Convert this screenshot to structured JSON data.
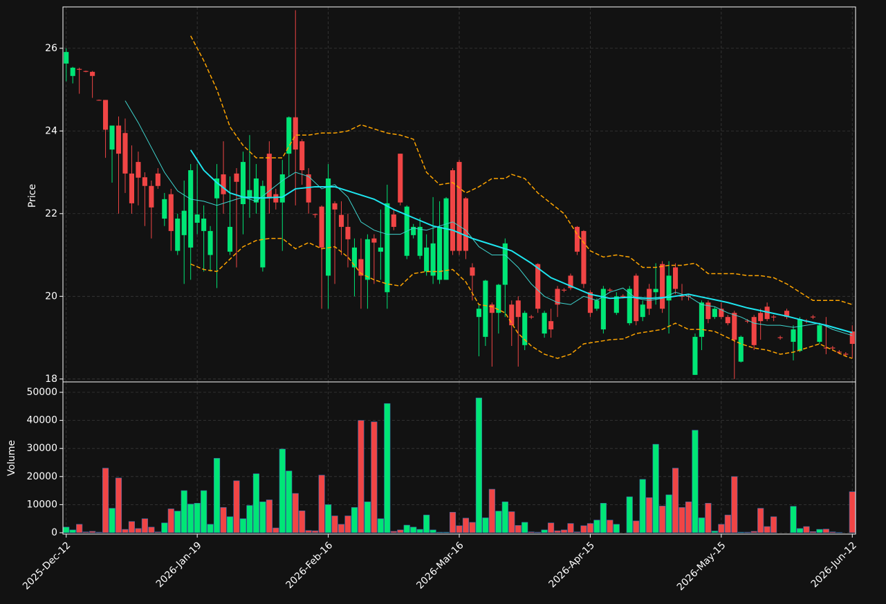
{
  "chart_data": [
    {
      "type": "candlestick",
      "ylabel": "Price",
      "grid": true,
      "up_color": "#00e676",
      "down_color": "#f04545",
      "xlim": [
        -0.5,
        120.5
      ],
      "ylim": [
        17.93,
        27.0
      ],
      "yticks": [
        18,
        20,
        22,
        24,
        26
      ],
      "open": [
        25.63,
        25.33,
        25.5,
        25.45,
        25.43,
        24.75,
        24.75,
        23.55,
        24.13,
        23.95,
        22.97,
        23.25,
        22.88,
        22.67,
        22.97,
        21.88,
        22.47,
        21.1,
        21.48,
        21.18,
        21.78,
        21.58,
        21.0,
        22.37,
        22.95,
        21.08,
        22.97,
        22.23,
        22.37,
        22.27,
        20.7,
        23.45,
        22.47,
        22.27,
        23.45,
        24.33,
        23.75,
        22.95,
        21.99,
        22.17,
        20.5,
        22.25,
        21.97,
        21.68,
        20.7,
        20.9,
        20.4,
        21.4,
        21.08,
        20.1,
        21.98,
        23.45,
        20.98,
        21.48,
        20.98,
        20.6,
        20.5,
        20.4,
        20.4,
        23.05,
        23.25,
        22.37,
        20.7,
        19.5,
        19.02,
        19.8,
        19.6,
        20.28,
        19.8,
        19.9,
        18.82,
        19.51,
        20.78,
        19.1,
        19.4,
        20.18,
        20.16,
        20.5,
        21.68,
        21.58,
        20.1,
        19.7,
        19.2,
        20.16,
        19.6,
        20.01,
        19.35,
        20.5,
        19.5,
        20.18,
        20.1,
        20.78,
        19.9,
        20.7,
        20.01,
        20.01,
        18.1,
        19.02,
        19.85,
        19.5,
        19.7,
        19.5,
        19.6,
        18.42,
        19.41,
        19.5,
        19.6,
        19.75,
        19.51,
        19.01,
        19.65,
        18.9,
        18.68,
        19.41,
        19.51,
        18.9,
        18.76,
        18.76,
        18.66,
        18.61,
        19.15
      ],
      "high": [
        26.0,
        25.55,
        25.53,
        25.46,
        25.45,
        24.76,
        24.75,
        24.13,
        24.35,
        24.3,
        23.65,
        23.5,
        23.0,
        22.8,
        23.1,
        22.5,
        22.6,
        22.0,
        22.8,
        23.2,
        23.2,
        22.2,
        21.7,
        23.2,
        23.75,
        22.9,
        23.1,
        23.5,
        23.9,
        23.2,
        22.8,
        23.75,
        22.6,
        23.3,
        24.35,
        26.92,
        23.8,
        23.1,
        22.0,
        22.2,
        23.2,
        22.3,
        22.3,
        22.0,
        21.4,
        21.4,
        21.5,
        21.5,
        22.1,
        22.7,
        22.1,
        23.45,
        22.2,
        21.75,
        21.9,
        21.5,
        22.4,
        22.3,
        22.4,
        23.1,
        23.3,
        22.4,
        20.8,
        19.8,
        20.4,
        19.85,
        20.3,
        21.4,
        19.9,
        20.0,
        19.65,
        19.55,
        20.8,
        19.65,
        19.7,
        20.25,
        20.2,
        20.55,
        21.7,
        21.6,
        20.15,
        19.95,
        20.25,
        20.2,
        20.1,
        20.05,
        20.25,
        20.55,
        19.9,
        20.3,
        20.8,
        20.85,
        20.85,
        20.8,
        20.3,
        20.05,
        19.1,
        19.9,
        19.9,
        19.75,
        19.85,
        19.55,
        19.65,
        19.05,
        19.45,
        19.55,
        19.7,
        19.85,
        19.55,
        19.05,
        19.7,
        19.3,
        19.5,
        19.45,
        19.55,
        19.35,
        19.5,
        18.8,
        18.7,
        18.65,
        19.3
      ],
      "low": [
        25.2,
        25.15,
        24.9,
        25.42,
        24.8,
        24.73,
        23.35,
        22.75,
        22.0,
        22.5,
        22.0,
        22.2,
        21.7,
        21.4,
        22.6,
        21.7,
        21.1,
        21.0,
        20.3,
        20.4,
        21.5,
        20.6,
        20.6,
        20.2,
        22.0,
        21.0,
        20.7,
        21.5,
        21.9,
        22.0,
        20.6,
        22.0,
        22.1,
        21.1,
        22.9,
        22.2,
        22.7,
        22.0,
        21.9,
        19.7,
        19.7,
        20.3,
        21.0,
        20.7,
        20.0,
        19.7,
        19.7,
        20.3,
        20.4,
        19.7,
        21.6,
        22.2,
        20.9,
        21.4,
        20.9,
        20.5,
        20.3,
        20.3,
        20.4,
        21.0,
        21.0,
        20.9,
        19.9,
        18.55,
        18.8,
        18.3,
        19.1,
        19.5,
        18.8,
        18.3,
        18.7,
        19.45,
        19.6,
        19.0,
        19.0,
        19.5,
        20.1,
        20.15,
        21.0,
        20.2,
        19.5,
        19.65,
        19.1,
        20.1,
        19.55,
        19.95,
        19.3,
        19.3,
        19.4,
        19.55,
        19.8,
        19.6,
        19.1,
        20.05,
        19.9,
        19.9,
        18.1,
        18.7,
        19.35,
        19.45,
        19.45,
        19.3,
        18.0,
        18.4,
        19.35,
        18.7,
        18.95,
        19.4,
        19.4,
        18.95,
        19.45,
        18.45,
        18.65,
        19.35,
        19.45,
        18.85,
        18.6,
        18.7,
        18.6,
        18.55,
        18.5
      ],
      "close": [
        25.91,
        25.53,
        25.48,
        25.43,
        25.33,
        24.74,
        24.03,
        24.13,
        23.45,
        22.97,
        22.25,
        22.87,
        22.67,
        22.15,
        22.67,
        22.35,
        21.58,
        21.88,
        22.07,
        23.05,
        21.98,
        21.88,
        21.58,
        22.85,
        22.47,
        21.68,
        22.77,
        23.25,
        22.57,
        22.85,
        22.67,
        22.37,
        22.27,
        22.95,
        24.33,
        23.55,
        23.05,
        22.27,
        21.97,
        21.18,
        22.85,
        22.1,
        21.68,
        21.38,
        21.18,
        20.5,
        21.38,
        21.3,
        21.18,
        22.25,
        21.68,
        22.27,
        22.17,
        21.68,
        21.68,
        21.18,
        21.28,
        21.68,
        22.37,
        21.1,
        21.1,
        21.1,
        20.5,
        19.7,
        20.38,
        19.6,
        20.28,
        21.28,
        19.3,
        19.5,
        19.6,
        19.49,
        19.7,
        19.6,
        19.2,
        19.8,
        20.14,
        20.2,
        21.08,
        20.3,
        19.6,
        19.9,
        20.18,
        20.14,
        20.0,
        19.99,
        20.18,
        19.4,
        19.8,
        19.7,
        20.18,
        19.7,
        20.5,
        20.18,
        19.99,
        19.99,
        19.02,
        19.85,
        19.45,
        19.7,
        19.5,
        19.35,
        18.95,
        19.02,
        19.39,
        18.82,
        19.4,
        19.45,
        19.49,
        18.99,
        19.5,
        19.2,
        19.45,
        19.39,
        19.49,
        19.3,
        18.74,
        18.74,
        18.64,
        18.59,
        18.85
      ],
      "lines": [
        {
          "color": "#3fd6d0",
          "width": 1,
          "style": "solid",
          "x": [
            9,
            11,
            13,
            15,
            17,
            19,
            21,
            23,
            25,
            27,
            29,
            31,
            33,
            35,
            37,
            39,
            41,
            43,
            45,
            47,
            49,
            51,
            53,
            55,
            57,
            59,
            61,
            63,
            65,
            67,
            69,
            71,
            73,
            75,
            77,
            79,
            81,
            83,
            85,
            87,
            89,
            91,
            93,
            95,
            97,
            99,
            101,
            103,
            105,
            107,
            109,
            111,
            113,
            115,
            117,
            120
          ],
          "values": [
            24.73,
            24.2,
            23.6,
            23.0,
            22.55,
            22.35,
            22.3,
            22.2,
            22.3,
            22.4,
            22.3,
            22.55,
            22.8,
            23.0,
            22.9,
            22.6,
            22.7,
            22.4,
            21.8,
            21.6,
            21.5,
            21.5,
            21.65,
            21.6,
            21.7,
            21.8,
            21.6,
            21.2,
            21.0,
            21.0,
            20.7,
            20.3,
            20.0,
            19.85,
            19.8,
            20.0,
            19.9,
            20.1,
            20.2,
            19.95,
            19.9,
            19.95,
            20.1,
            20.0,
            19.8,
            19.75,
            19.6,
            19.5,
            19.35,
            19.3,
            19.3,
            19.25,
            19.3,
            19.35,
            19.2,
            19.05
          ]
        },
        {
          "color": "#1ee6f0",
          "width": 2,
          "style": "solid",
          "x": [
            19,
            21,
            23,
            25,
            27,
            30,
            33,
            35,
            38,
            41,
            44,
            47,
            50,
            53,
            56,
            59,
            62,
            65,
            68,
            71,
            74,
            77,
            80,
            83,
            86,
            89,
            92,
            95,
            98,
            101,
            104,
            107,
            110,
            113,
            116,
            120
          ],
          "values": [
            23.54,
            23.05,
            22.75,
            22.5,
            22.4,
            22.38,
            22.4,
            22.6,
            22.65,
            22.65,
            22.5,
            22.35,
            22.1,
            21.9,
            21.7,
            21.6,
            21.4,
            21.25,
            21.1,
            20.8,
            20.45,
            20.25,
            20.05,
            19.95,
            19.98,
            19.95,
            19.98,
            20.05,
            19.95,
            19.85,
            19.72,
            19.62,
            19.52,
            19.4,
            19.3,
            19.12
          ]
        },
        {
          "color": "#ffa500",
          "width": 1.5,
          "style": "dashed",
          "x": [
            19,
            21,
            23,
            25,
            27,
            29,
            31,
            33,
            35,
            37,
            39,
            41,
            43,
            45,
            47,
            49,
            51,
            53,
            55,
            57,
            59,
            61,
            63,
            65,
            67,
            68,
            70,
            72,
            74,
            76,
            78,
            80,
            82,
            84,
            86,
            88,
            90,
            92,
            94,
            96,
            98,
            100,
            102,
            104,
            106,
            108,
            110,
            112,
            114,
            116,
            118,
            120
          ],
          "values": [
            26.3,
            25.7,
            25.0,
            24.1,
            23.65,
            23.35,
            23.35,
            23.35,
            23.9,
            23.9,
            23.95,
            23.95,
            24.0,
            24.15,
            24.05,
            23.95,
            23.9,
            23.8,
            23.0,
            22.7,
            22.75,
            22.5,
            22.65,
            22.85,
            22.85,
            22.95,
            22.85,
            22.5,
            22.25,
            22.0,
            21.5,
            21.1,
            20.95,
            21.0,
            20.95,
            20.7,
            20.7,
            20.75,
            20.75,
            20.8,
            20.55,
            20.55,
            20.55,
            20.5,
            20.5,
            20.45,
            20.3,
            20.1,
            19.9,
            19.9,
            19.9,
            19.8
          ]
        },
        {
          "color": "#ffa500",
          "width": 1.5,
          "style": "dashed",
          "x": [
            19,
            21,
            23,
            25,
            27,
            29,
            31,
            33,
            35,
            37,
            39,
            41,
            43,
            45,
            47,
            49,
            51,
            53,
            55,
            57,
            59,
            61,
            63,
            65,
            67,
            69,
            71,
            73,
            75,
            77,
            79,
            81,
            83,
            85,
            87,
            89,
            91,
            93,
            95,
            97,
            99,
            101,
            103,
            105,
            107,
            109,
            111,
            113,
            115,
            117,
            119,
            120
          ],
          "values": [
            20.78,
            20.65,
            20.6,
            20.9,
            21.2,
            21.35,
            21.4,
            21.4,
            21.15,
            21.3,
            21.15,
            21.2,
            20.95,
            20.55,
            20.4,
            20.3,
            20.25,
            20.55,
            20.6,
            20.6,
            20.65,
            20.35,
            19.8,
            19.75,
            19.6,
            19.1,
            18.8,
            18.6,
            18.5,
            18.6,
            18.85,
            18.9,
            18.95,
            18.97,
            19.1,
            19.15,
            19.2,
            19.35,
            19.2,
            19.2,
            19.15,
            19.0,
            18.85,
            18.75,
            18.7,
            18.6,
            18.65,
            18.75,
            18.85,
            18.7,
            18.55,
            18.5
          ]
        }
      ]
    },
    {
      "type": "volume",
      "ylabel": "Volume",
      "grid": true,
      "edge_color": "#3b6fb0",
      "xlim": [
        -0.5,
        120.5
      ],
      "ylim": [
        -500,
        53700
      ],
      "yticks": [
        0,
        10000,
        20000,
        30000,
        40000,
        50000
      ],
      "xticks": [
        {
          "value": 0,
          "label": "2025-Dec-12"
        },
        {
          "value": 20,
          "label": "2026-Jan-19"
        },
        {
          "value": 40,
          "label": "2026-Feb-16"
        },
        {
          "value": 60,
          "label": "2026-Mar-16"
        },
        {
          "value": 80,
          "label": "2026-Apr-15"
        },
        {
          "value": 100,
          "label": "2026-May-15"
        },
        {
          "value": 120,
          "label": "2026-Jun-12"
        }
      ],
      "values": [
        2000,
        1000,
        3000,
        300,
        500,
        200,
        23000,
        8700,
        19500,
        1200,
        4000,
        1500,
        5000,
        2000,
        300,
        3500,
        8500,
        7700,
        15000,
        10200,
        10500,
        15000,
        3000,
        26500,
        9000,
        5700,
        18500,
        5000,
        9700,
        21000,
        11000,
        11700,
        1700,
        29800,
        22000,
        14000,
        7800,
        800,
        700,
        20500,
        10000,
        6000,
        3000,
        6000,
        9000,
        40000,
        11000,
        39500,
        5000,
        46000,
        500,
        1000,
        2700,
        2000,
        1200,
        6300,
        1000,
        200,
        200,
        7300,
        2500,
        5200,
        3700,
        48000,
        5300,
        15500,
        7700,
        11000,
        7500,
        2600,
        3700,
        300,
        200,
        1000,
        3500,
        700,
        1000,
        3300,
        300,
        2500,
        3300,
        4500,
        10500,
        4500,
        3000,
        0,
        12800,
        4200,
        19000,
        12500,
        31500,
        9500,
        13500,
        23000,
        9000,
        11000,
        36500,
        5300,
        10500,
        600,
        3000,
        6300,
        20000,
        200,
        200,
        500,
        8700,
        2200,
        5700,
        0,
        0,
        9400,
        1500,
        2200,
        400,
        1200,
        1300,
        300,
        100,
        0,
        14600
      ]
    }
  ]
}
